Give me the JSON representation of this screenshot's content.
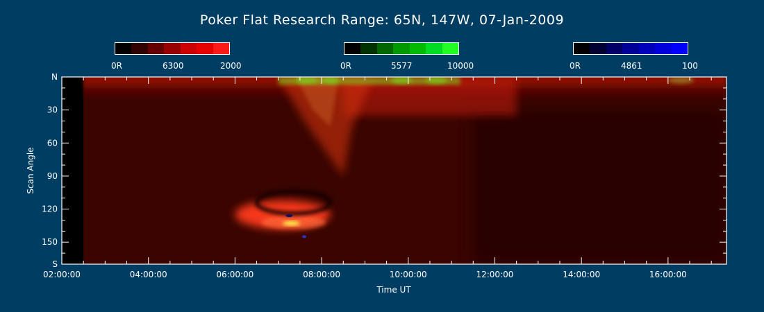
{
  "title": "Poker Flat Research Range: 65N, 147W, 07-Jan-2009",
  "colorbars": [
    {
      "id": "red",
      "min_label": "0R",
      "mid_label": "6300",
      "max_label": "2000",
      "colors": [
        "#000000",
        "#330000",
        "#660000",
        "#990000",
        "#cc0000",
        "#e60000",
        "#ff1a1a"
      ]
    },
    {
      "id": "green",
      "min_label": "0R",
      "mid_label": "5577",
      "max_label": "10000",
      "colors": [
        "#000000",
        "#003300",
        "#006600",
        "#009900",
        "#00bb00",
        "#00dd22",
        "#22ff22"
      ]
    },
    {
      "id": "blue",
      "min_label": "0R",
      "mid_label": "4861",
      "max_label": "100",
      "colors": [
        "#000000",
        "#000033",
        "#000066",
        "#000099",
        "#0000bb",
        "#0000dd",
        "#0000ff"
      ]
    }
  ],
  "chart_data": {
    "type": "heatmap",
    "title": "Poker Flat Research Range: 65N, 147W, 07-Jan-2009",
    "xlabel": "Time UT",
    "ylabel": "Scan Angle",
    "x_ticks": [
      "02:00:00",
      "04:00:00",
      "06:00:00",
      "08:00:00",
      "10:00:00",
      "12:00:00",
      "14:00:00",
      "16:00:00"
    ],
    "y_ticks": [
      "N",
      "30",
      "60",
      "90",
      "120",
      "150",
      "S"
    ],
    "xlim_hours": [
      2.0,
      17.35
    ],
    "ylim": [
      0,
      170
    ],
    "no_data_until_hour": 2.5,
    "background_color": "#3a0500",
    "features": [
      {
        "name": "red 6300 band near north horizon",
        "x_start": 2.5,
        "x_end": 17.35,
        "y_start": 0,
        "y_end": 20,
        "color": "#c01208"
      },
      {
        "name": "green 5577 aurora arcs near north",
        "x_start": 7.0,
        "x_end": 11.2,
        "y_start": 0,
        "y_end": 15,
        "color": "#7ad81a"
      },
      {
        "name": "red auroral intrusion",
        "x_start": 7.0,
        "x_end": 8.6,
        "y_start": 0,
        "y_end": 90,
        "color": "#d0300e"
      },
      {
        "name": "bright red region south of zenith",
        "x_start": 6.0,
        "x_end": 8.2,
        "y_start": 112,
        "y_end": 138,
        "color": "#ff3a1a"
      },
      {
        "name": "yellow-white hot spot",
        "x_start": 7.1,
        "x_end": 7.5,
        "y_start": 131,
        "y_end": 135,
        "color": "#ffff50"
      },
      {
        "name": "dark obscured arc",
        "x_start": 6.5,
        "x_end": 8.2,
        "y_start": 104,
        "y_end": 124,
        "color": "#150000"
      },
      {
        "name": "darker region late",
        "x_start": 11.5,
        "x_end": 17.35,
        "y_start": 30,
        "y_end": 170,
        "color": "#220200"
      }
    ]
  }
}
